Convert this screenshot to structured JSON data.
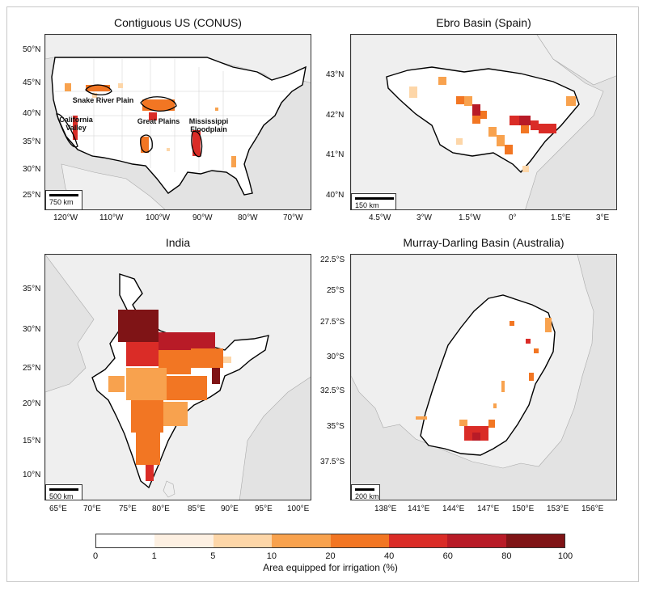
{
  "panels": [
    {
      "title": "Contiguous US (CONUS)",
      "scalebar": "750 km",
      "x_ticks": [
        "120°W",
        "110°W",
        "100°W",
        "90°W",
        "80°W",
        "70°W"
      ],
      "y_ticks": [
        "50°N",
        "45°N",
        "40°N",
        "35°N",
        "30°N",
        "25°N"
      ],
      "annotations": [
        "Snake River Plain",
        "California Valley",
        "Great Plains",
        "Mississippi Floodplain"
      ]
    },
    {
      "title": "Ebro Basin (Spain)",
      "scalebar": "150 km",
      "x_ticks": [
        "4.5°W",
        "3°W",
        "1.5°W",
        "0°",
        "1.5°E",
        "3°E"
      ],
      "y_ticks": [
        "43°N",
        "42°N",
        "41°N",
        "40°N"
      ]
    },
    {
      "title": "India",
      "scalebar": "500 km",
      "x_ticks": [
        "65°E",
        "70°E",
        "75°E",
        "80°E",
        "85°E",
        "90°E",
        "95°E",
        "100°E"
      ],
      "y_ticks": [
        "35°N",
        "30°N",
        "25°N",
        "20°N",
        "15°N",
        "10°N"
      ]
    },
    {
      "title": "Murray-Darling Basin (Australia)",
      "scalebar": "200 km",
      "x_ticks": [
        "138°E",
        "141°E",
        "144°E",
        "147°E",
        "150°E",
        "153°E",
        "156°E"
      ],
      "y_ticks": [
        "22.5°S",
        "25°S",
        "27.5°S",
        "30°S",
        "32.5°S",
        "35°S",
        "37.5°S"
      ]
    }
  ],
  "colorbar": {
    "label": "Area equipped for irrigation (%)",
    "ticks": [
      "0",
      "1",
      "5",
      "10",
      "20",
      "40",
      "60",
      "80",
      "100"
    ],
    "colors": [
      "#ffffff",
      "#fdf0e2",
      "#fdd6a8",
      "#f8a24e",
      "#f27623",
      "#da2c27",
      "#b81b27",
      "#7f1416"
    ]
  }
}
